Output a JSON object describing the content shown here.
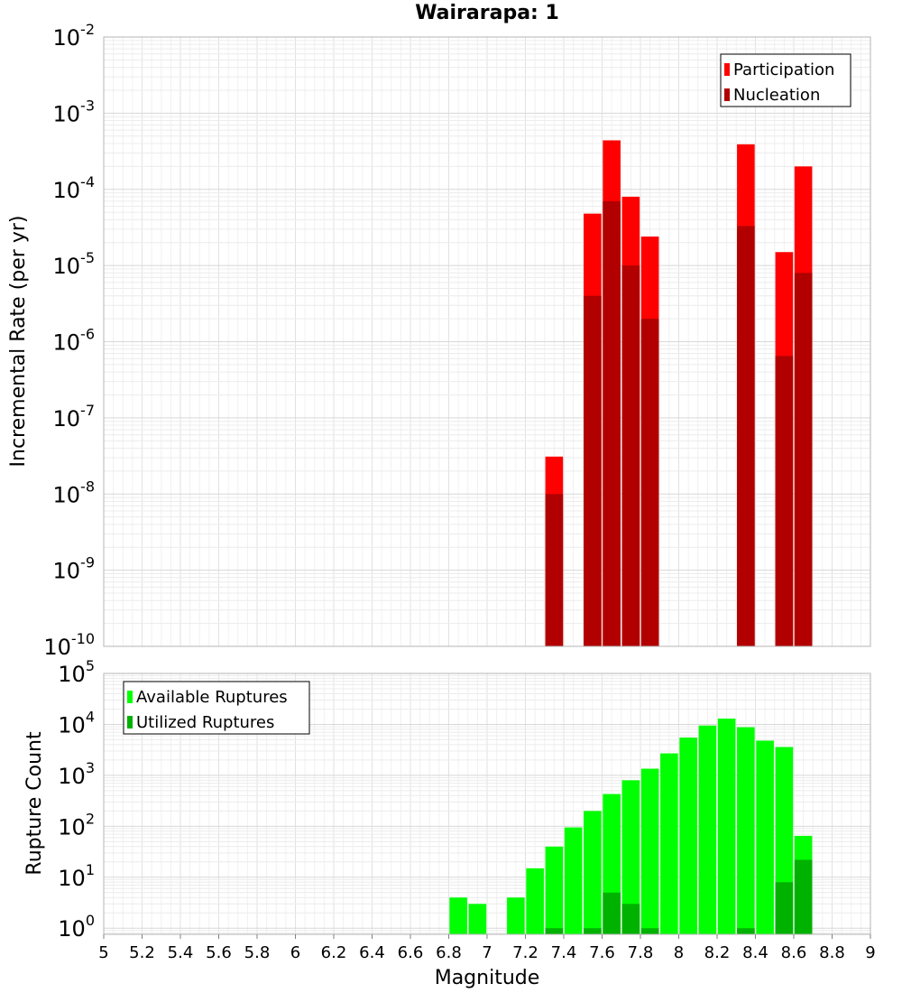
{
  "title": "Wairarapa: 1",
  "chart_data": [
    {
      "type": "bar",
      "scale": "log",
      "ylabel": "Incremental Rate (per yr)",
      "xlim": [
        5,
        9
      ],
      "ylim_exp": [
        -10,
        -2
      ],
      "y_ticks": [
        {
          "base": "10",
          "exp": "-10"
        },
        {
          "base": "10",
          "exp": "-9"
        },
        {
          "base": "10",
          "exp": "-8"
        },
        {
          "base": "10",
          "exp": "-7"
        },
        {
          "base": "10",
          "exp": "-6"
        },
        {
          "base": "10",
          "exp": "-5"
        },
        {
          "base": "10",
          "exp": "-4"
        },
        {
          "base": "10",
          "exp": "-3"
        },
        {
          "base": "10",
          "exp": "-2"
        }
      ],
      "legend": {
        "placement": "top-right",
        "items": [
          "Participation",
          "Nucleation"
        ]
      },
      "series": [
        {
          "name": "Participation",
          "color": "#ff0000",
          "x": [
            7.35,
            7.55,
            7.65,
            7.75,
            7.85,
            8.35,
            8.55,
            8.65
          ],
          "values": [
            3.1e-08,
            4.8e-05,
            0.00044,
            8e-05,
            2.4e-05,
            0.00039,
            1.5e-05,
            0.0002
          ]
        },
        {
          "name": "Nucleation",
          "color": "#b20000",
          "x": [
            7.35,
            7.55,
            7.65,
            7.75,
            7.85,
            8.35,
            8.55,
            8.65
          ],
          "values": [
            1e-08,
            4e-06,
            7e-05,
            1e-05,
            2e-06,
            3.3e-05,
            6.5e-07,
            8e-06
          ]
        }
      ]
    },
    {
      "type": "bar",
      "scale": "log",
      "ylabel": "Rupture Count",
      "xlabel": "Magnitude",
      "xlim": [
        5,
        9
      ],
      "ylim_exp": [
        -0.12,
        5
      ],
      "x_ticks": [
        "5",
        "5.2",
        "5.4",
        "5.6",
        "5.8",
        "6",
        "6.2",
        "6.4",
        "6.6",
        "6.8",
        "7",
        "7.2",
        "7.4",
        "7.6",
        "7.8",
        "8",
        "8.2",
        "8.4",
        "8.6",
        "8.8",
        "9"
      ],
      "y_ticks": [
        {
          "base": "10",
          "exp": "0"
        },
        {
          "base": "10",
          "exp": "1"
        },
        {
          "base": "10",
          "exp": "2"
        },
        {
          "base": "10",
          "exp": "3"
        },
        {
          "base": "10",
          "exp": "4"
        },
        {
          "base": "10",
          "exp": "5"
        }
      ],
      "legend": {
        "placement": "top-left",
        "items": [
          "Available Ruptures",
          "Utilized Ruptures"
        ]
      },
      "series": [
        {
          "name": "Available Ruptures",
          "color": "#00ff00",
          "x": [
            6.85,
            6.95,
            7.15,
            7.25,
            7.35,
            7.45,
            7.55,
            7.65,
            7.75,
            7.85,
            7.95,
            8.05,
            8.15,
            8.25,
            8.35,
            8.45,
            8.55,
            8.65
          ],
          "values": [
            4,
            3,
            4,
            15,
            40,
            95,
            200,
            430,
            800,
            1350,
            2700,
            5500,
            9500,
            13000,
            8800,
            4800,
            3600,
            65
          ]
        },
        {
          "name": "Utilized Ruptures",
          "color": "#00b200",
          "x": [
            7.35,
            7.55,
            7.65,
            7.75,
            7.85,
            8.35,
            8.55,
            8.65
          ],
          "values": [
            1,
            1,
            5,
            3,
            1,
            1,
            8,
            22
          ]
        }
      ]
    }
  ]
}
